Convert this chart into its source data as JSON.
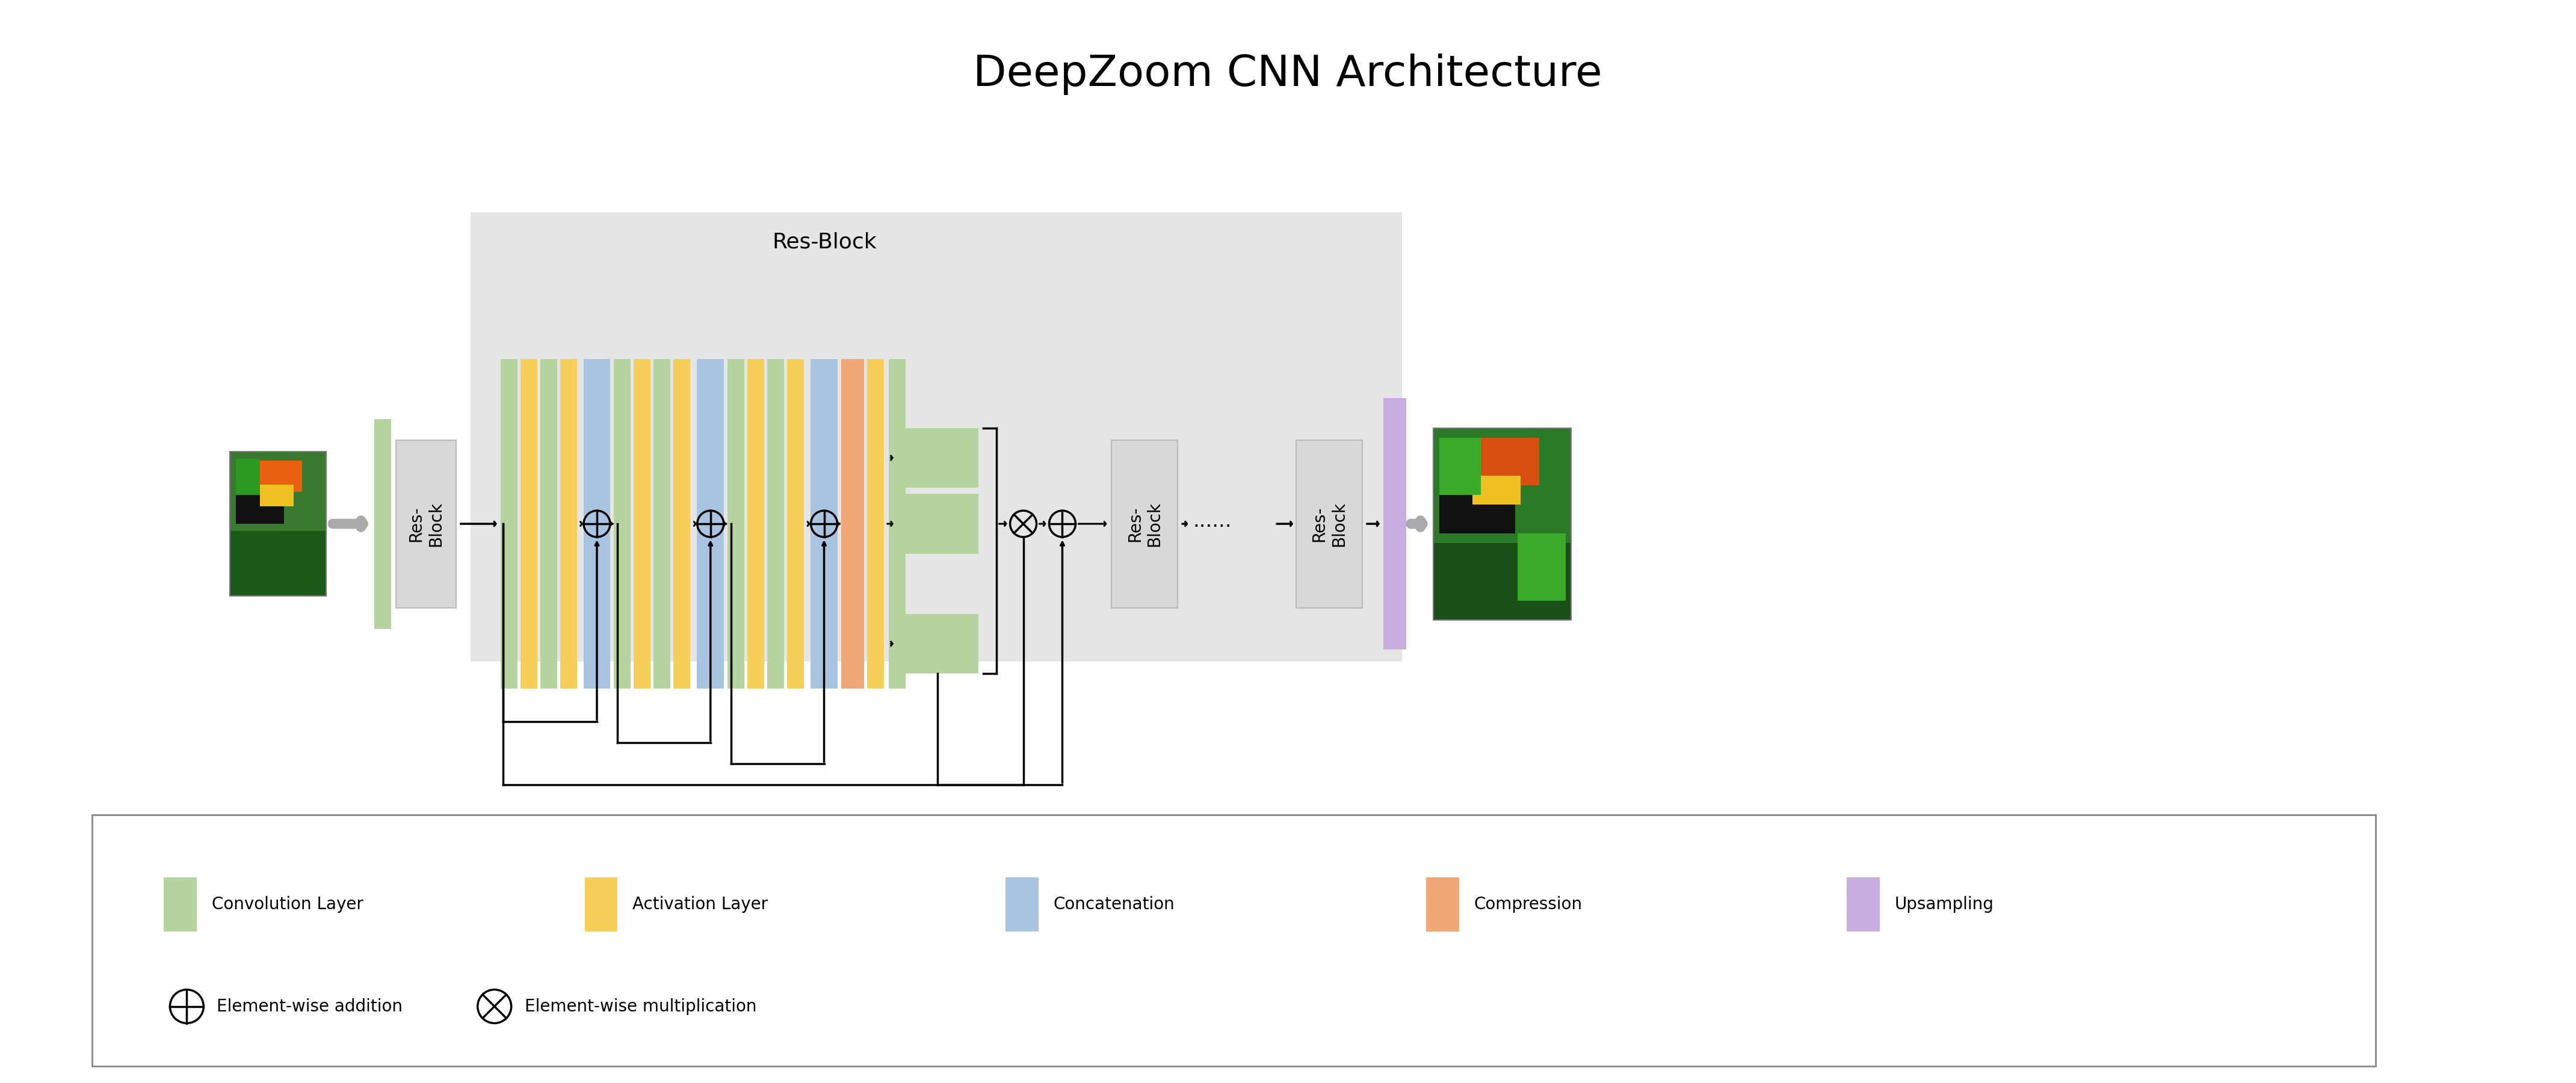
{
  "title": "DeepZoom CNN Architecture",
  "title_fontsize": 52,
  "bg_color": "#ffffff",
  "colors": {
    "conv": "#b5d4a0",
    "act": "#f5cf5a",
    "concat": "#a8c4e0",
    "compress": "#f0a878",
    "upsample": "#c8aee0",
    "resblock_fill": "#d8d8d8",
    "bigblock_bg": "#e5e5e5",
    "arrow_gray": "#aaaaaa"
  },
  "legend_items": [
    {
      "label": "Convolution Layer",
      "color": "#b5d4a0"
    },
    {
      "label": "Activation Layer",
      "color": "#f5cf5a"
    },
    {
      "label": "Concatenation",
      "color": "#a8c4e0"
    },
    {
      "label": "Compression",
      "color": "#f0a878"
    },
    {
      "label": "Upsampling",
      "color": "#c8aee0"
    }
  ]
}
